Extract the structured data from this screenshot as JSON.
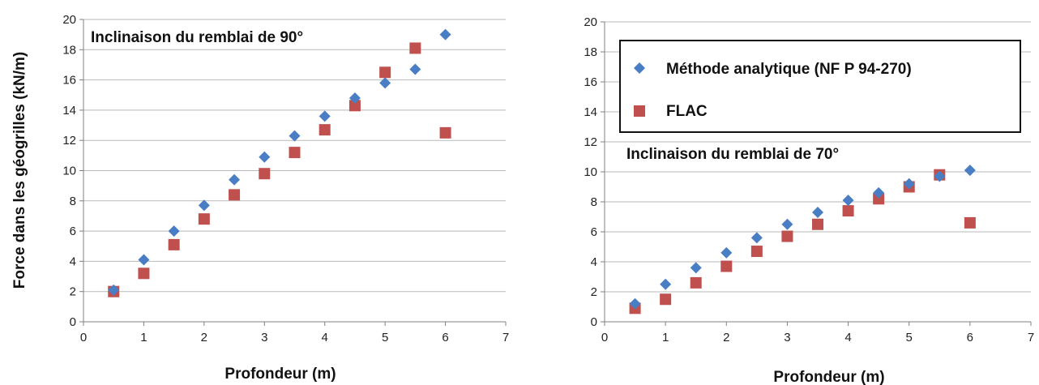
{
  "chart_data": [
    {
      "type": "scatter",
      "title": "",
      "annotation": "Inclinaison du remblai de 90°",
      "xlabel": "Profondeur (m)",
      "ylabel": "Force dans les géogrilles (kN/m)",
      "xlim": [
        0,
        7
      ],
      "ylim": [
        0,
        20
      ],
      "x_ticks": [
        "0",
        "1",
        "2",
        "3",
        "4",
        "5",
        "6",
        "7"
      ],
      "y_ticks": [
        "0",
        "2",
        "4",
        "6",
        "8",
        "10",
        "12",
        "14",
        "16",
        "18",
        "20"
      ],
      "grid": "horizontal",
      "series": [
        {
          "name": "Méthode analytique (NF P 94-270)",
          "marker": "diamond",
          "color": "#4a7ec4",
          "x": [
            0.5,
            1,
            1.5,
            2,
            2.5,
            3,
            3.5,
            4,
            4.5,
            5,
            5.5,
            6
          ],
          "y": [
            2.1,
            4.1,
            6.0,
            7.7,
            9.4,
            10.9,
            12.3,
            13.6,
            14.8,
            15.8,
            16.7,
            19.0
          ]
        },
        {
          "name": "FLAC",
          "marker": "square",
          "color": "#c0504d",
          "x": [
            0.5,
            1,
            1.5,
            2,
            2.5,
            3,
            3.5,
            4,
            4.5,
            5,
            5.5,
            6
          ],
          "y": [
            2.0,
            3.2,
            5.1,
            6.8,
            8.4,
            9.8,
            11.2,
            12.7,
            14.3,
            16.5,
            18.1,
            12.5
          ]
        }
      ]
    },
    {
      "type": "scatter",
      "title": "",
      "annotation": "Inclinaison du remblai de 70°",
      "xlabel": "Profondeur (m)",
      "ylabel": "",
      "xlim": [
        0,
        7
      ],
      "ylim": [
        0,
        20
      ],
      "x_ticks": [
        "0",
        "1",
        "2",
        "3",
        "4",
        "5",
        "6",
        "7"
      ],
      "y_ticks": [
        "0",
        "2",
        "4",
        "6",
        "8",
        "10",
        "12",
        "14",
        "16",
        "18",
        "20"
      ],
      "grid": "horizontal",
      "legend_position": "top",
      "legend": [
        {
          "label": "Méthode analytique (NF P 94-270)",
          "marker": "diamond",
          "color": "#4a7ec4"
        },
        {
          "label": "FLAC",
          "marker": "square",
          "color": "#c0504d"
        }
      ],
      "series": [
        {
          "name": "Méthode analytique (NF P 94-270)",
          "marker": "diamond",
          "color": "#4a7ec4",
          "x": [
            0.5,
            1,
            1.5,
            2,
            2.5,
            3,
            3.5,
            4,
            4.5,
            5,
            5.5,
            6
          ],
          "y": [
            1.2,
            2.5,
            3.6,
            4.6,
            5.6,
            6.5,
            7.3,
            8.1,
            8.6,
            9.2,
            9.7,
            10.1
          ]
        },
        {
          "name": "FLAC",
          "marker": "square",
          "color": "#c0504d",
          "x": [
            0.5,
            1,
            1.5,
            2,
            2.5,
            3,
            3.5,
            4,
            4.5,
            5,
            5.5,
            6
          ],
          "y": [
            0.9,
            1.5,
            2.6,
            3.7,
            4.7,
            5.7,
            6.5,
            7.4,
            8.2,
            9.0,
            9.8,
            6.6
          ]
        }
      ]
    }
  ]
}
